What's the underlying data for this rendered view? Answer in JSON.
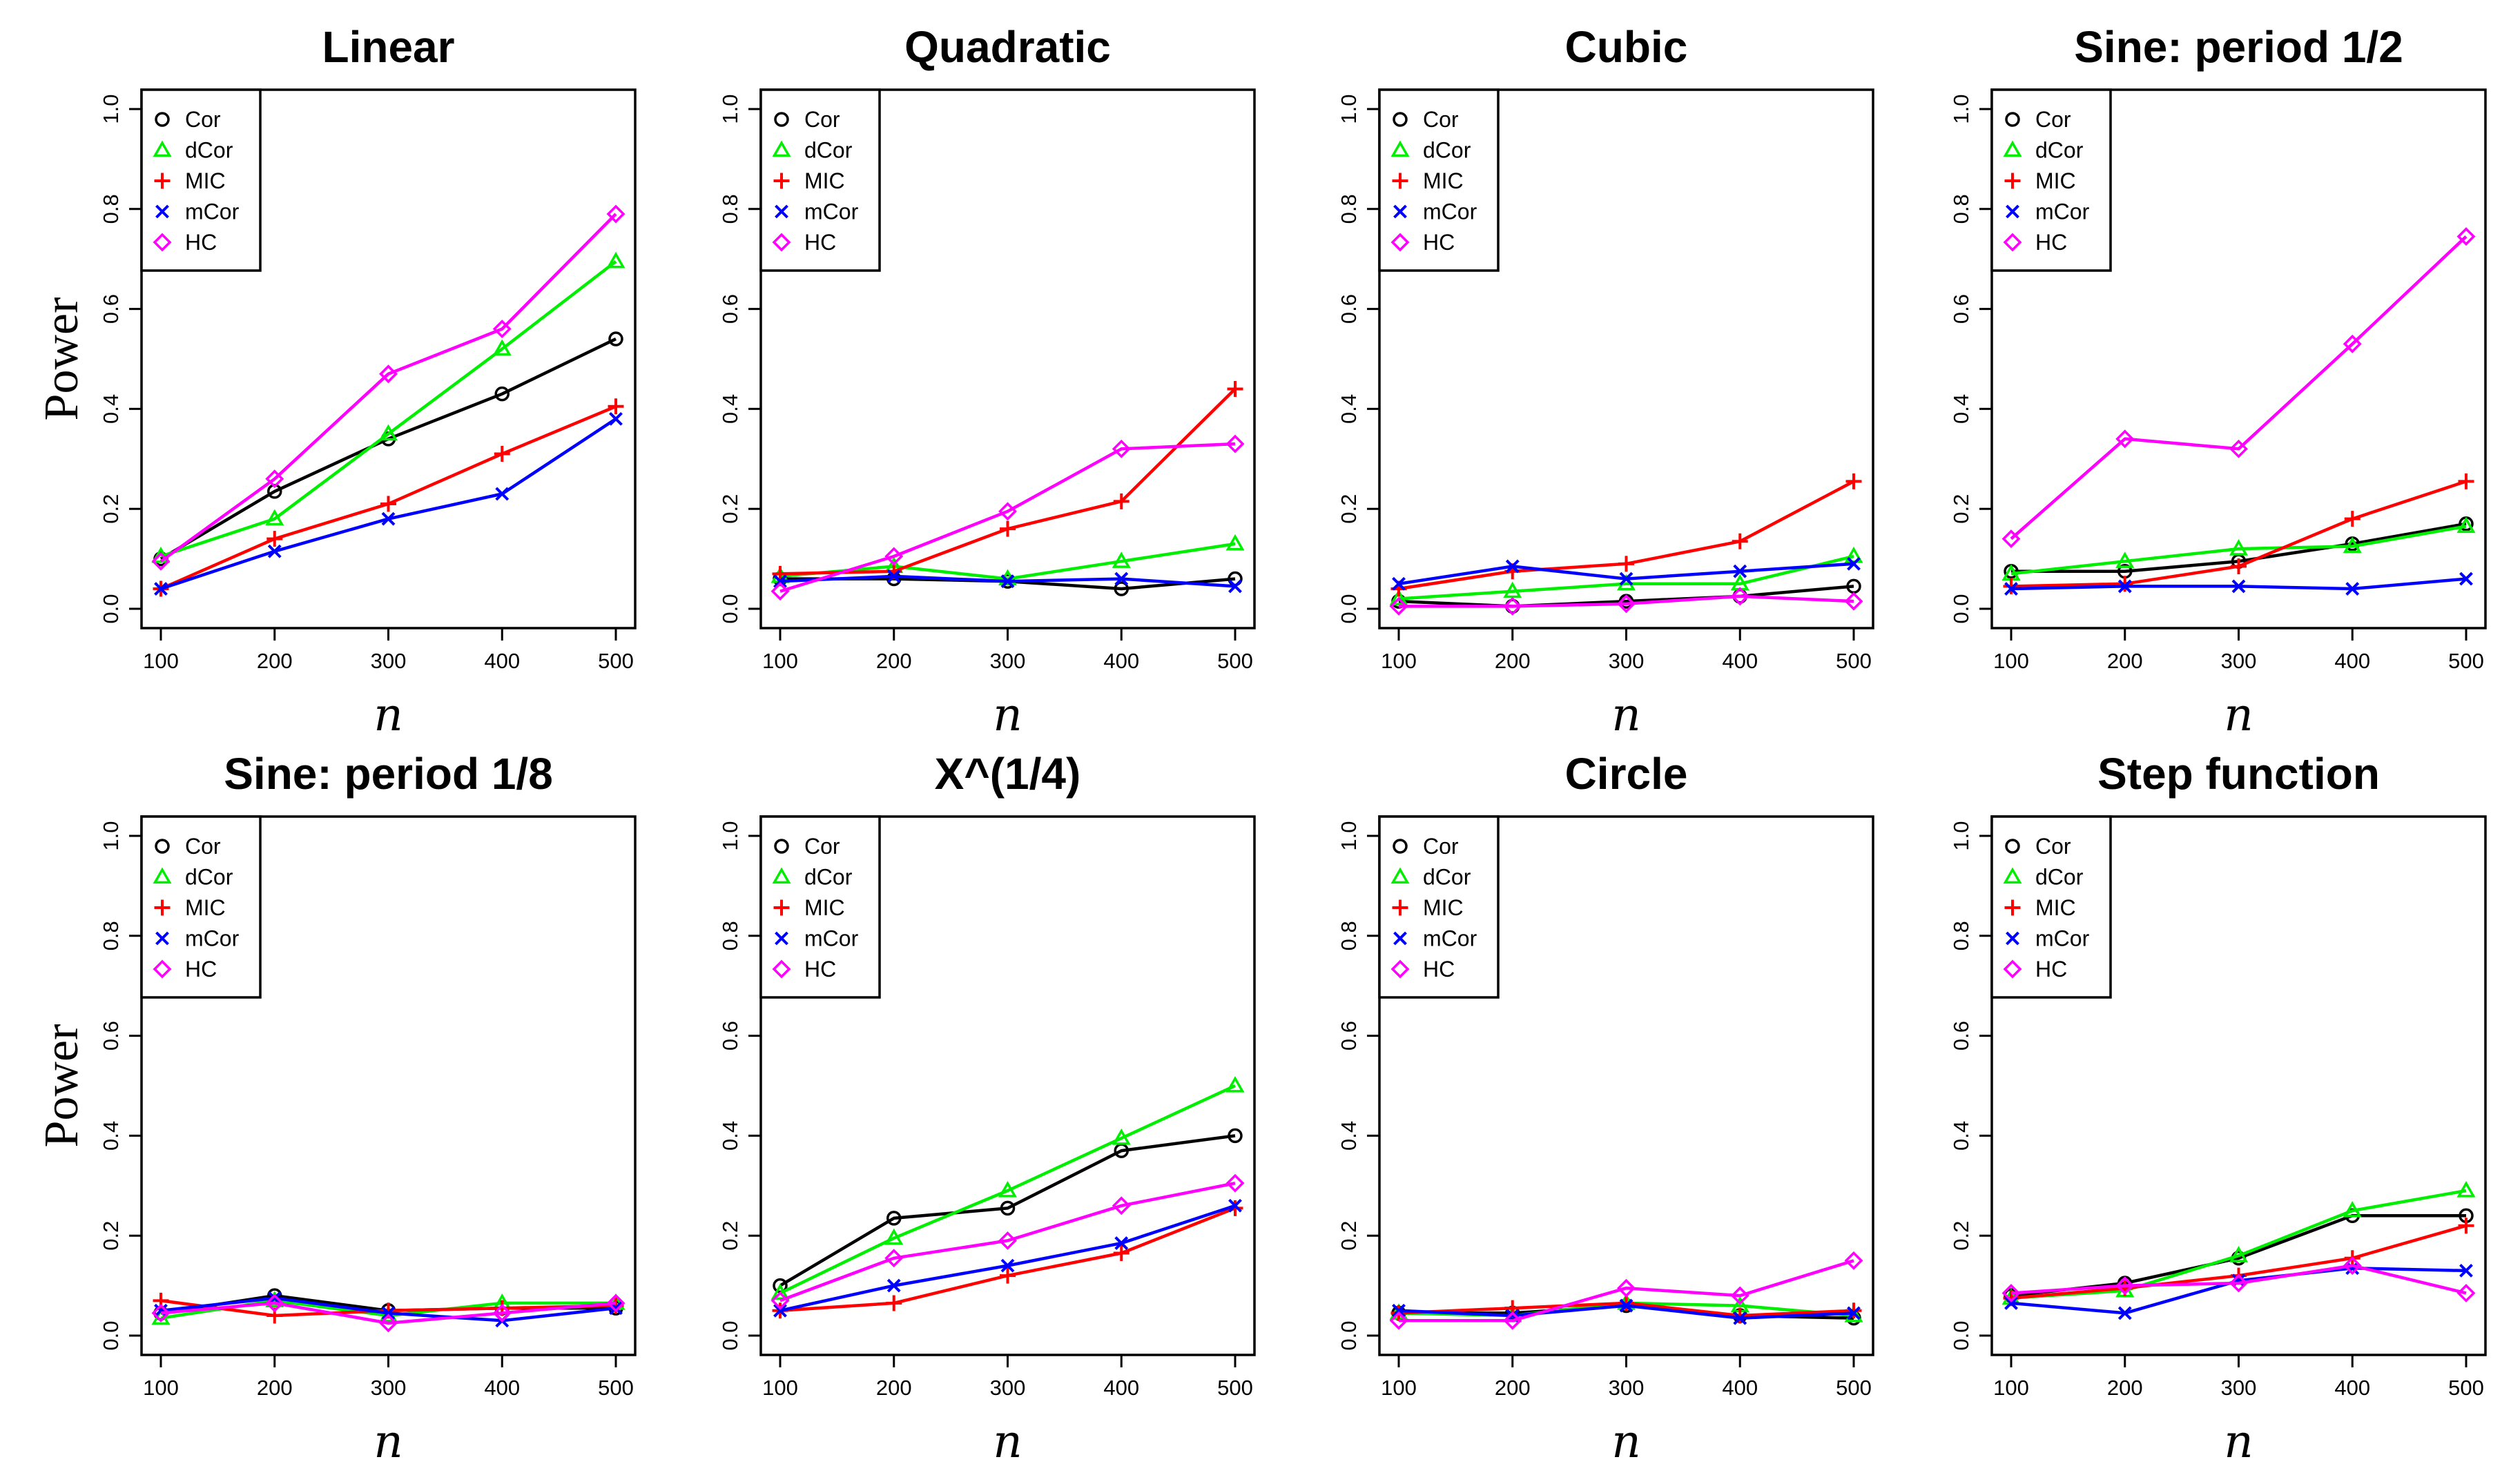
{
  "figure": {
    "y_axis_label": "Power",
    "x_axis_label": "n",
    "legend": [
      {
        "name": "Cor",
        "color": "#000000",
        "marker": "circle"
      },
      {
        "name": "dCor",
        "color": "#00ee00",
        "marker": "triangle"
      },
      {
        "name": "MIC",
        "color": "#ff0000",
        "marker": "plus"
      },
      {
        "name": "mCor",
        "color": "#0000ff",
        "marker": "cross"
      },
      {
        "name": "HC",
        "color": "#ff00ff",
        "marker": "diamond"
      }
    ]
  },
  "chart_data": [
    {
      "type": "line",
      "title": "Linear",
      "xlabel": "n",
      "ylabel": "Power",
      "x": [
        100,
        200,
        300,
        400,
        500
      ],
      "xticks": [
        "100",
        "200",
        "300",
        "400",
        "500"
      ],
      "ylim": [
        0,
        1
      ],
      "yticks": [
        "0.0",
        "0.2",
        "0.4",
        "0.6",
        "0.8",
        "1.0"
      ],
      "legend": "top-left",
      "series": [
        {
          "name": "Cor",
          "values": [
            0.1,
            0.235,
            0.34,
            0.43,
            0.54
          ]
        },
        {
          "name": "dCor",
          "values": [
            0.105,
            0.18,
            0.35,
            0.52,
            0.695
          ]
        },
        {
          "name": "MIC",
          "values": [
            0.04,
            0.14,
            0.21,
            0.31,
            0.405
          ]
        },
        {
          "name": "mCor",
          "values": [
            0.04,
            0.115,
            0.18,
            0.23,
            0.38
          ]
        },
        {
          "name": "HC",
          "values": [
            0.095,
            0.26,
            0.47,
            0.56,
            0.79
          ]
        }
      ]
    },
    {
      "type": "line",
      "title": "Quadratic",
      "xlabel": "n",
      "ylabel": "Power",
      "x": [
        100,
        200,
        300,
        400,
        500
      ],
      "xticks": [
        "100",
        "200",
        "300",
        "400",
        "500"
      ],
      "ylim": [
        0,
        1
      ],
      "yticks": [
        "0.0",
        "0.2",
        "0.4",
        "0.6",
        "0.8",
        "1.0"
      ],
      "legend": "top-left",
      "series": [
        {
          "name": "Cor",
          "values": [
            0.06,
            0.06,
            0.055,
            0.04,
            0.06
          ]
        },
        {
          "name": "dCor",
          "values": [
            0.065,
            0.085,
            0.06,
            0.095,
            0.13
          ]
        },
        {
          "name": "MIC",
          "values": [
            0.07,
            0.075,
            0.16,
            0.215,
            0.44
          ]
        },
        {
          "name": "mCor",
          "values": [
            0.055,
            0.065,
            0.055,
            0.06,
            0.045
          ]
        },
        {
          "name": "HC",
          "values": [
            0.035,
            0.105,
            0.195,
            0.32,
            0.33
          ]
        }
      ]
    },
    {
      "type": "line",
      "title": "Cubic",
      "xlabel": "n",
      "ylabel": "Power",
      "x": [
        100,
        200,
        300,
        400,
        500
      ],
      "xticks": [
        "100",
        "200",
        "300",
        "400",
        "500"
      ],
      "ylim": [
        0,
        1
      ],
      "yticks": [
        "0.0",
        "0.2",
        "0.4",
        "0.6",
        "0.8",
        "1.0"
      ],
      "legend": "top-left",
      "series": [
        {
          "name": "Cor",
          "values": [
            0.015,
            0.005,
            0.015,
            0.025,
            0.045
          ]
        },
        {
          "name": "dCor",
          "values": [
            0.02,
            0.035,
            0.05,
            0.05,
            0.105
          ]
        },
        {
          "name": "MIC",
          "values": [
            0.04,
            0.075,
            0.09,
            0.135,
            0.255
          ]
        },
        {
          "name": "mCor",
          "values": [
            0.05,
            0.085,
            0.06,
            0.075,
            0.09
          ]
        },
        {
          "name": "HC",
          "values": [
            0.005,
            0.005,
            0.01,
            0.025,
            0.015
          ]
        }
      ]
    },
    {
      "type": "line",
      "title": "Sine: period 1/2",
      "xlabel": "n",
      "ylabel": "Power",
      "x": [
        100,
        200,
        300,
        400,
        500
      ],
      "xticks": [
        "100",
        "200",
        "300",
        "400",
        "500"
      ],
      "ylim": [
        0,
        1
      ],
      "yticks": [
        "0.0",
        "0.2",
        "0.4",
        "0.6",
        "0.8",
        "1.0"
      ],
      "legend": "top-left",
      "series": [
        {
          "name": "Cor",
          "values": [
            0.075,
            0.075,
            0.095,
            0.13,
            0.17
          ]
        },
        {
          "name": "dCor",
          "values": [
            0.07,
            0.095,
            0.12,
            0.125,
            0.165
          ]
        },
        {
          "name": "MIC",
          "values": [
            0.045,
            0.05,
            0.085,
            0.18,
            0.255
          ]
        },
        {
          "name": "mCor",
          "values": [
            0.04,
            0.045,
            0.045,
            0.04,
            0.06
          ]
        },
        {
          "name": "HC",
          "values": [
            0.14,
            0.34,
            0.32,
            0.53,
            0.745
          ]
        }
      ]
    },
    {
      "type": "line",
      "title": "Sine: period 1/8",
      "xlabel": "n",
      "ylabel": "Power",
      "x": [
        100,
        200,
        300,
        400,
        500
      ],
      "xticks": [
        "100",
        "200",
        "300",
        "400",
        "500"
      ],
      "ylim": [
        0,
        1
      ],
      "yticks": [
        "0.0",
        "0.2",
        "0.4",
        "0.6",
        "0.8",
        "1.0"
      ],
      "legend": "top-left",
      "series": [
        {
          "name": "Cor",
          "values": [
            0.045,
            0.08,
            0.05,
            0.055,
            0.055
          ]
        },
        {
          "name": "dCor",
          "values": [
            0.035,
            0.07,
            0.04,
            0.065,
            0.065
          ]
        },
        {
          "name": "MIC",
          "values": [
            0.07,
            0.04,
            0.05,
            0.055,
            0.06
          ]
        },
        {
          "name": "mCor",
          "values": [
            0.05,
            0.075,
            0.045,
            0.03,
            0.055
          ]
        },
        {
          "name": "HC",
          "values": [
            0.045,
            0.065,
            0.025,
            0.045,
            0.065
          ]
        }
      ]
    },
    {
      "type": "line",
      "title": "X^(1/4)",
      "xlabel": "n",
      "ylabel": "Power",
      "x": [
        100,
        200,
        300,
        400,
        500
      ],
      "xticks": [
        "100",
        "200",
        "300",
        "400",
        "500"
      ],
      "ylim": [
        0,
        1
      ],
      "yticks": [
        "0.0",
        "0.2",
        "0.4",
        "0.6",
        "0.8",
        "1.0"
      ],
      "legend": "top-left",
      "series": [
        {
          "name": "Cor",
          "values": [
            0.1,
            0.235,
            0.255,
            0.37,
            0.4
          ]
        },
        {
          "name": "dCor",
          "values": [
            0.085,
            0.195,
            0.29,
            0.395,
            0.5
          ]
        },
        {
          "name": "MIC",
          "values": [
            0.05,
            0.065,
            0.12,
            0.165,
            0.255
          ]
        },
        {
          "name": "mCor",
          "values": [
            0.05,
            0.1,
            0.14,
            0.185,
            0.26
          ]
        },
        {
          "name": "HC",
          "values": [
            0.07,
            0.155,
            0.19,
            0.26,
            0.305
          ]
        }
      ]
    },
    {
      "type": "line",
      "title": "Circle",
      "xlabel": "n",
      "ylabel": "Power",
      "x": [
        100,
        200,
        300,
        400,
        500
      ],
      "xticks": [
        "100",
        "200",
        "300",
        "400",
        "500"
      ],
      "ylim": [
        0,
        1
      ],
      "yticks": [
        "0.0",
        "0.2",
        "0.4",
        "0.6",
        "0.8",
        "1.0"
      ],
      "legend": "top-left",
      "series": [
        {
          "name": "Cor",
          "values": [
            0.045,
            0.045,
            0.06,
            0.04,
            0.035
          ]
        },
        {
          "name": "dCor",
          "values": [
            0.045,
            0.04,
            0.065,
            0.06,
            0.04
          ]
        },
        {
          "name": "MIC",
          "values": [
            0.045,
            0.055,
            0.065,
            0.04,
            0.05
          ]
        },
        {
          "name": "mCor",
          "values": [
            0.05,
            0.04,
            0.06,
            0.035,
            0.045
          ]
        },
        {
          "name": "HC",
          "values": [
            0.03,
            0.03,
            0.095,
            0.08,
            0.15
          ]
        }
      ]
    },
    {
      "type": "line",
      "title": "Step function",
      "xlabel": "n",
      "ylabel": "Power",
      "x": [
        100,
        200,
        300,
        400,
        500
      ],
      "xticks": [
        "100",
        "200",
        "300",
        "400",
        "500"
      ],
      "ylim": [
        0,
        1
      ],
      "yticks": [
        "0.0",
        "0.2",
        "0.4",
        "0.6",
        "0.8",
        "1.0"
      ],
      "legend": "top-left",
      "series": [
        {
          "name": "Cor",
          "values": [
            0.08,
            0.105,
            0.155,
            0.24,
            0.24
          ]
        },
        {
          "name": "dCor",
          "values": [
            0.075,
            0.09,
            0.16,
            0.25,
            0.29
          ]
        },
        {
          "name": "MIC",
          "values": [
            0.075,
            0.095,
            0.12,
            0.155,
            0.22
          ]
        },
        {
          "name": "mCor",
          "values": [
            0.065,
            0.045,
            0.11,
            0.135,
            0.13
          ]
        },
        {
          "name": "HC",
          "values": [
            0.085,
            0.1,
            0.105,
            0.14,
            0.085
          ]
        }
      ]
    }
  ]
}
